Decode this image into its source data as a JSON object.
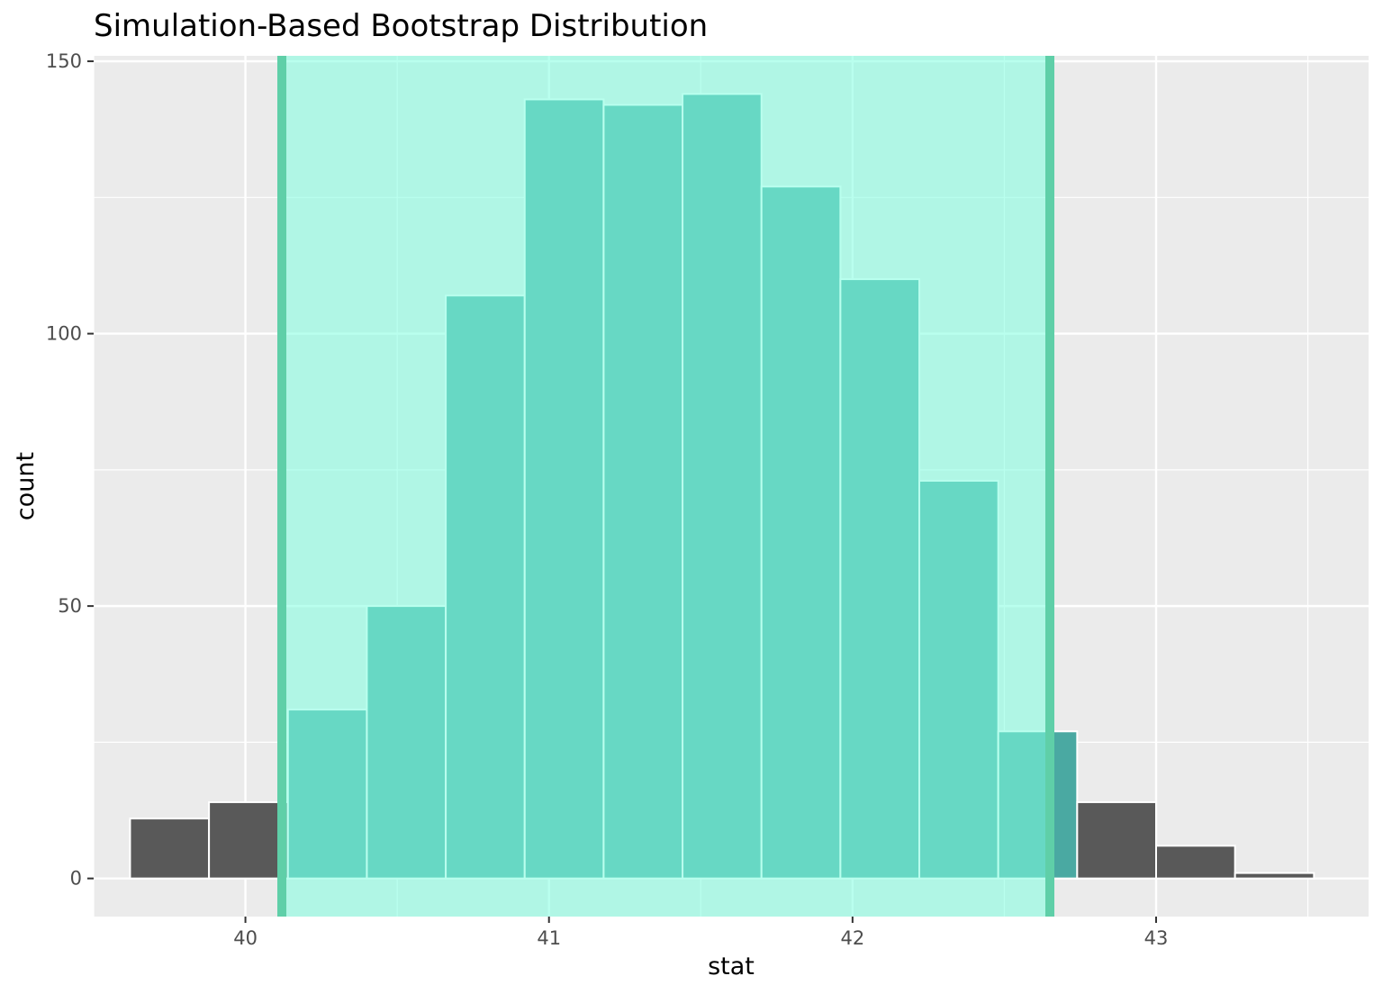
{
  "chart_data": {
    "type": "bar",
    "title": "Simulation-Based Bootstrap Distribution",
    "xlabel": "stat",
    "ylabel": "count",
    "xlim": [
      39.5,
      43.7
    ],
    "ylim": [
      -7,
      151
    ],
    "x_ticks": [
      40,
      41,
      42,
      43
    ],
    "y_ticks": [
      0,
      50,
      100,
      150
    ],
    "grid": true,
    "bins": {
      "left_edges": [
        39.62,
        39.88,
        40.14,
        40.4,
        40.66,
        40.92,
        41.18,
        41.44,
        41.7,
        41.96,
        42.22,
        42.48,
        42.74,
        43.0,
        43.26
      ],
      "width": 0.26,
      "counts": [
        11,
        14,
        31,
        50,
        107,
        143,
        142,
        144,
        127,
        110,
        73,
        27,
        14,
        6,
        1
      ]
    },
    "interval": {
      "lower": 40.12,
      "upper": 42.65
    },
    "colors": {
      "panel": "#ebebeb",
      "grid": "#ffffff",
      "bar_outside": "#595959",
      "bar_inside": "#4aa9a2",
      "shade": "#7fffe0",
      "interval_line": "#5fcfa8",
      "bar_outline": "#ffffff",
      "bar_outline_inside": "#a8f5e8"
    }
  }
}
